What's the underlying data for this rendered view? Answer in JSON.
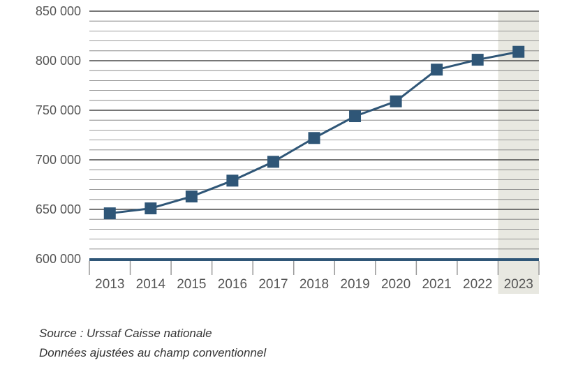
{
  "chart_data": {
    "type": "line",
    "categories": [
      "2013",
      "2014",
      "2015",
      "2016",
      "2017",
      "2018",
      "2019",
      "2020",
      "2021",
      "2022",
      "2023"
    ],
    "series": [
      {
        "values": [
          646000,
          651000,
          663000,
          679000,
          698000,
          722000,
          744000,
          759000,
          791000,
          801000,
          809000
        ]
      }
    ],
    "ylim": [
      600000,
      850000
    ],
    "yticks": [
      600000,
      650000,
      700000,
      750000,
      800000,
      850000
    ],
    "ytick_labels": [
      "600 000",
      "650 000",
      "700 000",
      "750 000",
      "800 000",
      "850 000"
    ],
    "y_minor_step": 10000,
    "highlighted_category": "2023",
    "grid": true,
    "colors": {
      "line": "#2f5677",
      "marker": "#2f5677",
      "major_grid": "#4a4a4a",
      "minor_grid": "#7a7a7a",
      "highlight_band": "#e8e8e1",
      "axis": "#2f5677"
    }
  },
  "footnotes": {
    "source": "Source : Urssaf Caisse nationale",
    "scope": "Données ajustées au champ conventionnel"
  }
}
